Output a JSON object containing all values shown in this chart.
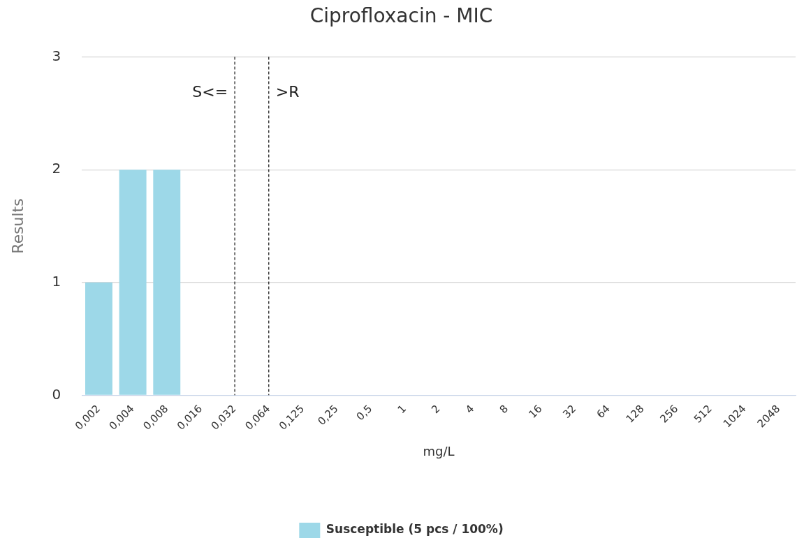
{
  "chart_data": {
    "type": "bar",
    "title": "Ciprofloxacin - MIC",
    "xlabel": "mg/L",
    "ylabel": "Results",
    "categories": [
      "0,002",
      "0,004",
      "0,008",
      "0,016",
      "0,032",
      "0,064",
      "0,125",
      "0,25",
      "0,5",
      "1",
      "2",
      "4",
      "8",
      "16",
      "32",
      "64",
      "128",
      "256",
      "512",
      "1024",
      "2048"
    ],
    "series": [
      {
        "name": "Susceptible (5 pcs / 100%)",
        "color": "#9dd8e8",
        "values": [
          1,
          2,
          2,
          0,
          0,
          0,
          0,
          0,
          0,
          0,
          0,
          0,
          0,
          0,
          0,
          0,
          0,
          0,
          0,
          0,
          0
        ]
      }
    ],
    "ylim": [
      0,
      3
    ],
    "yticks": [
      0,
      1,
      2,
      3
    ],
    "grid": "y",
    "legend": "bottom",
    "ref_lines": [
      {
        "axis": "x",
        "value": "0,032",
        "label": "S<=",
        "line_style": "dashed",
        "color": "#222222"
      },
      {
        "axis": "x",
        "value": "0,064",
        "label": ">R",
        "line_style": "dashed",
        "color": "#222222"
      }
    ]
  }
}
